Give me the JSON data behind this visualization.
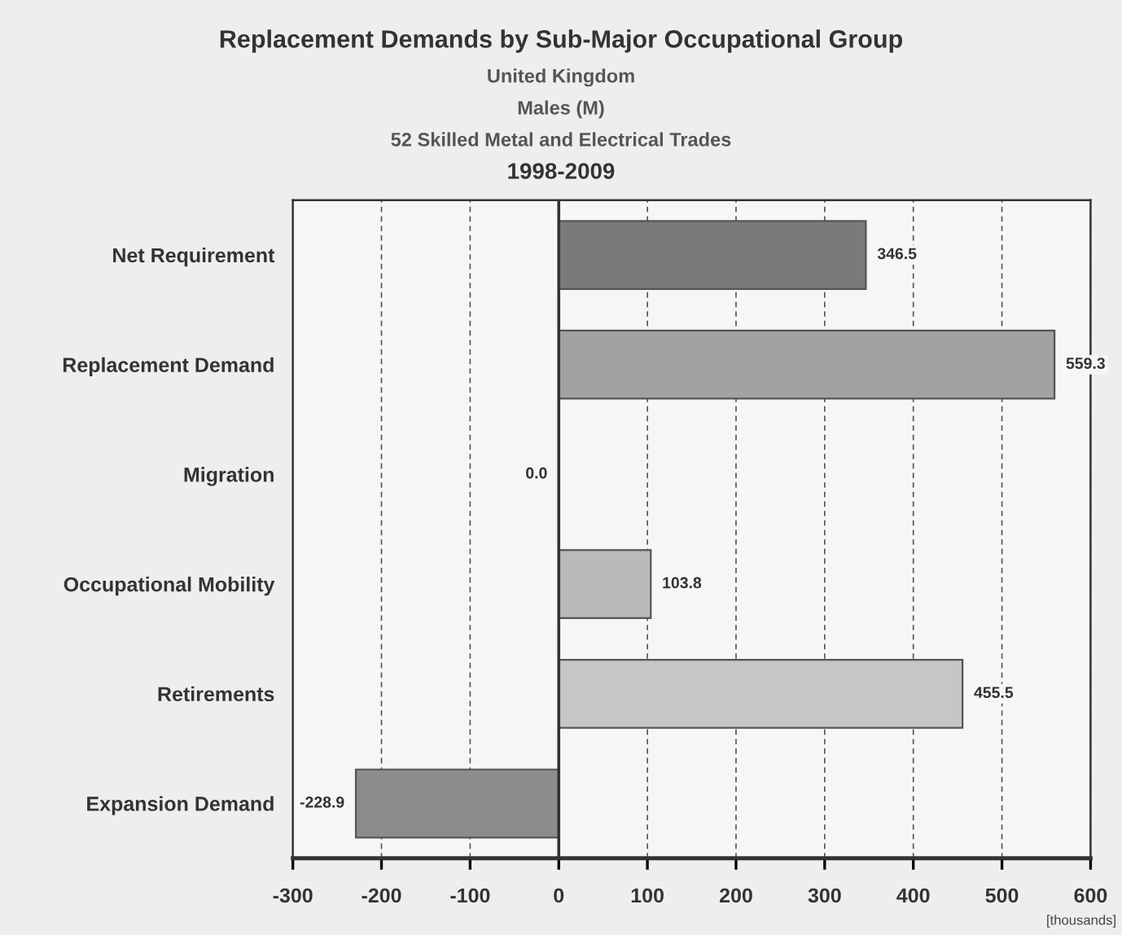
{
  "chart_data": {
    "type": "bar",
    "orientation": "horizontal",
    "title": "Replacement Demands by Sub-Major Occupational Group",
    "subtitle": "United Kingdom\nMales (M)\n52 Skilled Metal and Electrical Trades\n1998-2009",
    "xlabel": "[thousands]",
    "categories": [
      "Net Requirement",
      "Replacement Demand",
      "Migration",
      "Occupational Mobility",
      "Retirements",
      "Expansion Demand"
    ],
    "values": [
      346.5,
      559.3,
      0.0,
      103.8,
      455.5,
      -228.9
    ],
    "colors": [
      "#7a7a7a",
      "#a2a2a2",
      null,
      "#bababa",
      "#c6c6c6",
      "#8c8c8c"
    ],
    "value_labels": [
      "346.5",
      "559.3",
      "0.0",
      "103.8",
      "455.5",
      "-228.9"
    ],
    "xlim": [
      -300,
      600
    ],
    "xticks": [
      -300,
      -200,
      -100,
      0,
      100,
      200,
      300,
      400,
      500,
      600
    ],
    "ref_lines": [
      {
        "axis": "x",
        "value": 0,
        "color": "#333333",
        "line_style": "solid"
      }
    ],
    "grid": "x",
    "line_style": "dashed",
    "legend": false
  }
}
